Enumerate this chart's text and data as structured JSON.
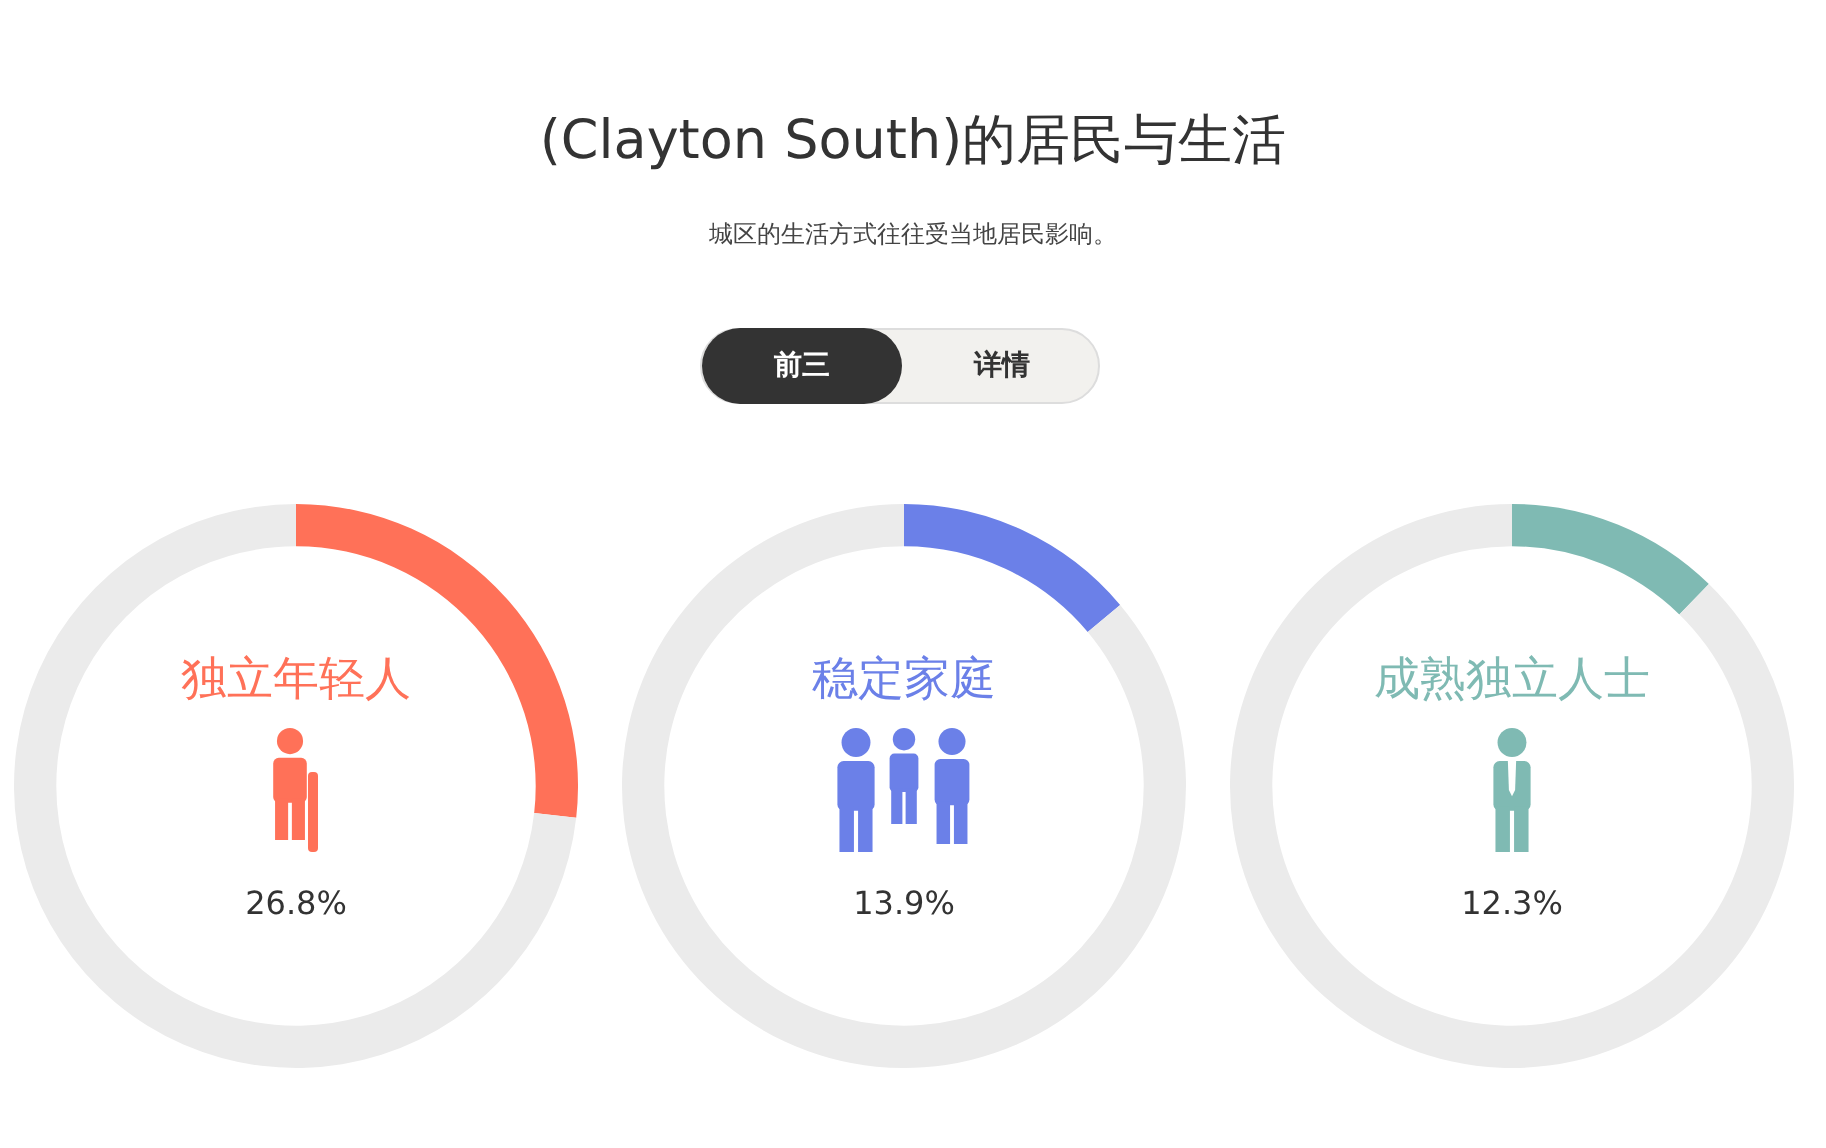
{
  "chart_data": [
    {
      "type": "other",
      "title": "(Clayton South)的居民与生活",
      "subtitle": "城区的生活方式往往受当地居民影响。",
      "annotations": [
        "前三",
        "详情"
      ]
    },
    {
      "type": "donut",
      "title": "独立年轻人",
      "categories": [
        null,
        null
      ],
      "values": [
        26.8,
        73.2
      ],
      "colors": [
        "#ff7158",
        "#ebebeb"
      ],
      "annotations": [
        "26.8%"
      ]
    },
    {
      "type": "donut",
      "title": "稳定家庭",
      "categories": [
        null,
        null
      ],
      "values": [
        13.9,
        86.1
      ],
      "colors": [
        "#6b80e8",
        "#ebebeb"
      ],
      "annotations": [
        "13.9%"
      ]
    },
    {
      "type": "donut",
      "title": "成熟独立人士",
      "categories": [
        null,
        null
      ],
      "values": [
        12.3,
        87.7
      ],
      "colors": [
        "#7fbab3",
        "#ebebeb"
      ],
      "annotations": [
        "12.3%"
      ]
    }
  ]
}
